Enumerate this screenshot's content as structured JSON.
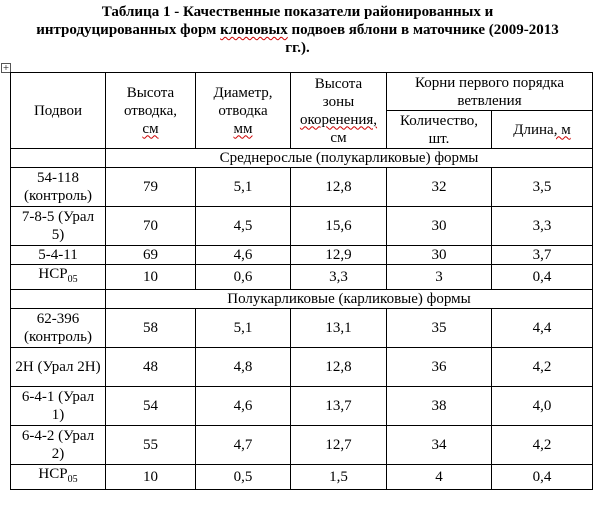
{
  "caption": {
    "line1": "Таблица 1 - Качественные показатели районированных и",
    "line2_a": "интродуцированных форм ",
    "line2_b": "клоновых",
    "line2_c": " подвоев яблони в маточнике (2009-2013",
    "line3": "гг.)."
  },
  "table": {
    "headers": {
      "rootstock": "Подвои",
      "shoot_height_a": "Высота",
      "shoot_height_b": "отводка,",
      "shoot_height_c": "см",
      "diameter_a": "Диаметр,",
      "diameter_b": "отводка",
      "diameter_c": "мм",
      "rooting_zone_a": "Высота",
      "rooting_zone_b": "зоны",
      "rooting_zone_c": "окоренения,",
      "rooting_zone_d": "см",
      "roots_group": "Корни первого порядка ветвления",
      "count": "Количество, шт.",
      "length_a": "Длина",
      "length_b": ", м"
    },
    "group1": "Среднерослые (полукарликовые) формы",
    "group1_rows": [
      {
        "name": "54-118 (контроль)",
        "h": "79",
        "d": "5,1",
        "z": "12,8",
        "n": "32",
        "l": "3,5"
      },
      {
        "name": "7-8-5 (Урал 5)",
        "h": "70",
        "d": "4,5",
        "z": "15,6",
        "n": "30",
        "l": "3,3"
      },
      {
        "name": "5-4-11",
        "h": "69",
        "d": "4,6",
        "z": "12,9",
        "n": "30",
        "l": "3,7"
      },
      {
        "name": "НСР05",
        "h": "10",
        "d": "0,6",
        "z": "3,3",
        "n": "3",
        "l": "0,4"
      }
    ],
    "group2": "Полукарликовые (карликовые) формы",
    "group2_rows": [
      {
        "name": "62-396 (контроль)",
        "h": "58",
        "d": "5,1",
        "z": "13,1",
        "n": "35",
        "l": "4,4"
      },
      {
        "name": "2Н (Урал 2Н)",
        "h": "48",
        "d": "4,8",
        "z": "12,8",
        "n": "36",
        "l": "4,2"
      },
      {
        "name": "6-4-1 (Урал 1)",
        "h": "54",
        "d": "4,6",
        "z": "13,7",
        "n": "38",
        "l": "4,0"
      },
      {
        "name": "6-4-2 (Урал 2)",
        "h": "55",
        "d": "4,7",
        "z": "12,7",
        "n": "34",
        "l": "4,2"
      },
      {
        "name": "НСР05",
        "h": "10",
        "d": "0,5",
        "z": "1,5",
        "n": "4",
        "l": "0,4"
      }
    ]
  }
}
